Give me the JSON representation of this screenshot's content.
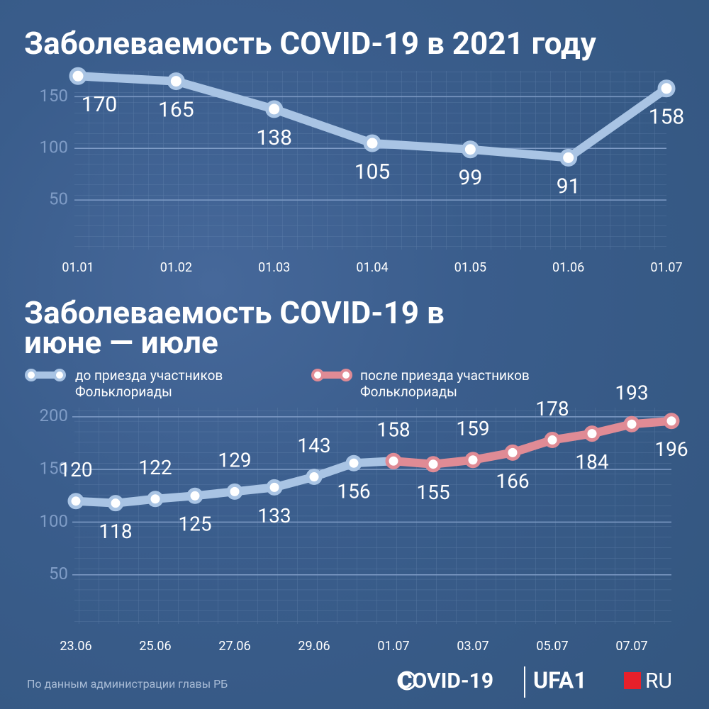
{
  "chart_data": [
    {
      "type": "line",
      "title": "Заболеваемость COVID-19 в 2021 году",
      "categories": [
        "01.01",
        "01.02",
        "01.03",
        "01.04",
        "01.05",
        "01.06",
        "01.07"
      ],
      "series": [
        {
          "color": "#a9c4e4",
          "values": [
            170,
            165,
            138,
            105,
            99,
            91,
            158
          ]
        }
      ],
      "ylim": [
        0,
        175
      ],
      "yticks": [
        50,
        100,
        150
      ],
      "grid": true
    },
    {
      "type": "line",
      "title": "Заболеваемость COVID-19 в июне — июле",
      "categories": [
        "23.06",
        null,
        "25.06",
        null,
        "27.06",
        null,
        "29.06",
        null,
        "01.07",
        null,
        "03.07",
        null,
        "05.07",
        null,
        "07.07",
        null
      ],
      "series": [
        {
          "name": "до приезда участников Фольклориады",
          "color": "#a9c4e4",
          "values": [
            120,
            118,
            122,
            125,
            129,
            133,
            143,
            156,
            null,
            null,
            null,
            null,
            null,
            null,
            null,
            null
          ]
        },
        {
          "name": "после приезда участников Фольклориады",
          "color": "#e08b95",
          "values": [
            null,
            null,
            null,
            null,
            null,
            null,
            null,
            null,
            158,
            155,
            159,
            166,
            178,
            184,
            193,
            196
          ]
        }
      ],
      "ylim": [
        0,
        210
      ],
      "yticks": [
        50,
        100,
        150,
        200
      ],
      "grid": true
    }
  ],
  "footer": {
    "source": "По данным администрации главы РБ",
    "logo": [
      "COVID-19",
      "UFA1",
      "RU"
    ]
  }
}
